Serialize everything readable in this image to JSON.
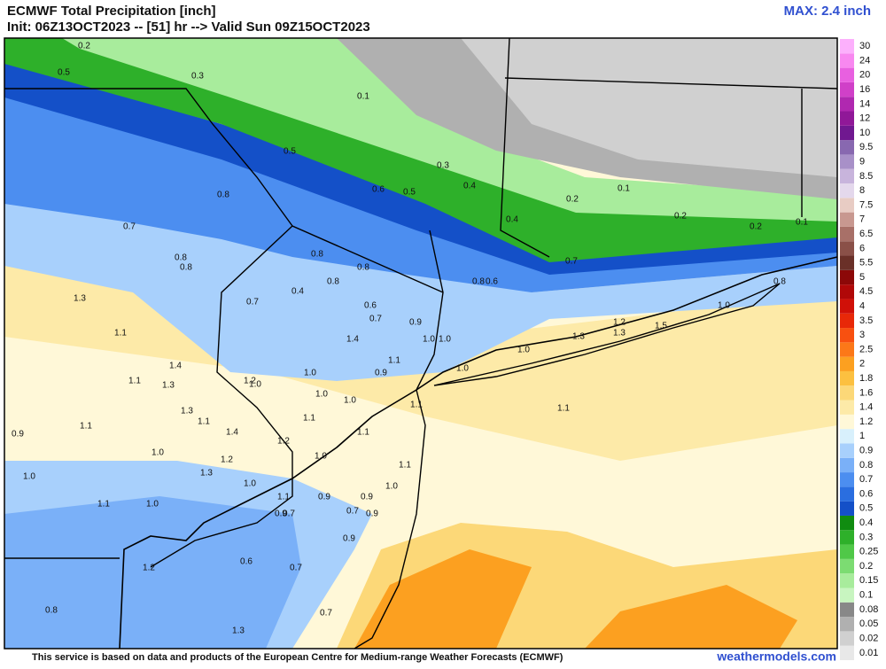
{
  "header": {
    "title": "ECMWF Total Precipitation [inch]",
    "subtitle": "Init: 06Z13OCT2023 -- [51] hr --> Valid Sun 09Z15OCT2023",
    "max": "MAX: 2.4 inch"
  },
  "map": {
    "labels": [
      "0.2",
      "0.5",
      "0.3",
      "0.1",
      "0.5",
      "0.3",
      "0.6",
      "0.5",
      "0.4",
      "0.8",
      "0.1",
      "0.2",
      "0.4",
      "0.2",
      "0.2",
      "0.1",
      "0.7",
      "0.8",
      "0.8",
      "0.8",
      "0.8",
      "0.7",
      "0.4",
      "0.8",
      "0.7",
      "0.8",
      "0.6",
      "0.6",
      "0.7",
      "0.9",
      "0.8",
      "1.0",
      "1.3",
      "1.1",
      "1.2",
      "1.3",
      "1.3",
      "1.5",
      "1.4",
      "1.0",
      "1.0",
      "1.0",
      "1.4",
      "1.1",
      "1.3",
      "1.1",
      "1.0",
      "1.2",
      "1.0",
      "1.0",
      "0.9",
      "1.0",
      "1.0",
      "1.1",
      "1.1",
      "1.3",
      "1.1",
      "1.1",
      "1.1",
      "1.4",
      "1.1",
      "1.2",
      "1.0",
      "1.0",
      "1.2",
      "1.1",
      "1.3",
      "1.0",
      "1.0",
      "1.0",
      "1.1",
      "1.0",
      "1.1",
      "0.9",
      "0.9",
      "0.9",
      "0.7",
      "0.7",
      "0.9",
      "0.9",
      "1.2",
      "0.6",
      "0.7",
      "0.8",
      "0.7",
      "1.3",
      "0.9"
    ]
  },
  "colorbar": {
    "levels": [
      0.01,
      0.02,
      0.05,
      0.08,
      0.1,
      0.15,
      0.2,
      0.25,
      0.3,
      0.4,
      0.5,
      0.6,
      0.7,
      0.8,
      0.9,
      1,
      1.2,
      1.4,
      1.6,
      1.8,
      2,
      2.5,
      3,
      3.5,
      4,
      4.5,
      5,
      5.5,
      6,
      6.5,
      7,
      7.5,
      8,
      8.5,
      9,
      9.5,
      10,
      12,
      14,
      16,
      20,
      24,
      30
    ],
    "colors": [
      "#e8e8e8",
      "#d0d0d0",
      "#b0b0b0",
      "#888888",
      "#c8f5c0",
      "#a8ec9c",
      "#7cdc72",
      "#50c848",
      "#2eb02a",
      "#108c10",
      "#1450c8",
      "#2a6ee0",
      "#4c8ef0",
      "#7ab0f8",
      "#a8d0fc",
      "#d8f0fc",
      "#fff8d8",
      "#fdeaa8",
      "#fcd878",
      "#fcc040",
      "#fca020",
      "#fc7818",
      "#f85010",
      "#e82808",
      "#d01008",
      "#b00808",
      "#8c0808",
      "#6a3028",
      "#8a5048",
      "#a87068",
      "#c89890",
      "#e8ccc4",
      "#e4d8ec",
      "#c8b4dc",
      "#a890c8",
      "#8868b0",
      "#701890",
      "#901898",
      "#b028b0",
      "#d040c8",
      "#e860e0",
      "#f888f0",
      "#fcb0fc"
    ]
  },
  "footer": {
    "notice": "This service is based on data and products of the European Centre for Medium-range Weather Forecasts (ECMWF)",
    "site": "weathermodels.com"
  }
}
